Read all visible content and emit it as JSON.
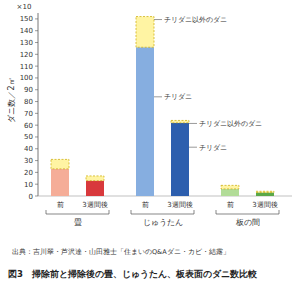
{
  "chart_data": {
    "type": "bar",
    "stacked": true,
    "grid": false,
    "title": "図3　掃除前と掃除後の畳、じゅうたん、板表面のダニ数比較",
    "source": "出典：吉川翠・芦沢達・山田雅士「住まいのQ&Aダニ・カビ・結露」",
    "ylabel": "ダニ数／2㎡",
    "y_axis_note": "×10",
    "categories": [
      "前",
      "3週間後",
      "前",
      "3週間後",
      "前",
      "3週間後"
    ],
    "groups": [
      "畳",
      "じゅうたん",
      "板の間"
    ],
    "series": [
      {
        "name": "チリダニ",
        "colors": [
          "#f5ad98",
          "#d8393c",
          "#86aee0",
          "#2d5fae",
          "#b2dc98",
          "#5aa847"
        ],
        "values": [
          23,
          13,
          126,
          62,
          6,
          3
        ]
      },
      {
        "name": "チリダニ以外のダニ",
        "color": "#fff4a3",
        "line_style": "dashed",
        "values": [
          8,
          4,
          26,
          2,
          3,
          1
        ]
      }
    ],
    "ylim": [
      0,
      155
    ],
    "yticks": [
      0,
      10,
      20,
      30,
      40,
      50,
      60,
      70,
      80,
      90,
      100,
      110,
      120,
      130,
      140,
      150
    ]
  }
}
